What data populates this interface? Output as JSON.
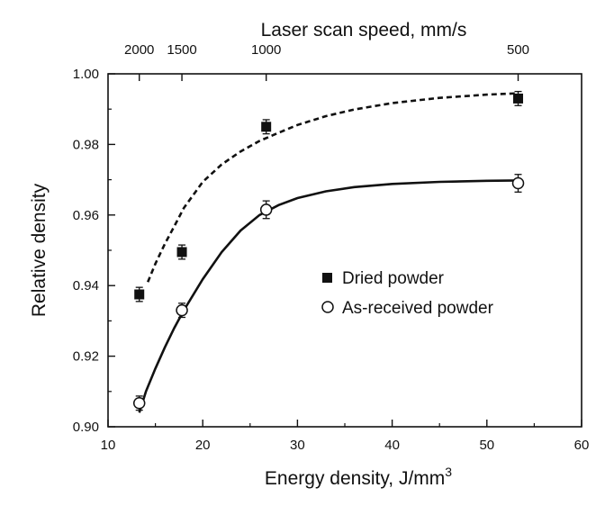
{
  "chart_data": {
    "type": "scatter",
    "xlabel": "Energy density, J/mm",
    "xlabel_superscript": "3",
    "ylabel": "Relative density",
    "top_axis_label": "Laser scan speed, mm/s",
    "xlim": [
      10,
      60
    ],
    "ylim": [
      0.9,
      1.0
    ],
    "x_ticks": [
      10,
      20,
      30,
      40,
      50,
      60
    ],
    "y_ticks": [
      "0.90",
      "0.92",
      "0.94",
      "0.96",
      "0.98",
      "1.00"
    ],
    "top_ticks": [
      {
        "label": "2000",
        "energy_density": 13.3
      },
      {
        "label": "1500",
        "energy_density": 17.8
      },
      {
        "label": "1000",
        "energy_density": 26.7
      },
      {
        "label": "500",
        "energy_density": 53.3
      }
    ],
    "grid": false,
    "legend_position": "center-right",
    "series": [
      {
        "name": "Dried powder",
        "marker": "filled-square",
        "fit_line": "dashed",
        "points": [
          {
            "x": 13.3,
            "y": 0.9375,
            "err": 0.002
          },
          {
            "x": 17.8,
            "y": 0.9495,
            "err": 0.002
          },
          {
            "x": 26.7,
            "y": 0.985,
            "err": 0.002
          },
          {
            "x": 53.3,
            "y": 0.993,
            "err": 0.002
          }
        ],
        "fit": [
          [
            14.2,
            0.941
          ],
          [
            15.0,
            0.9462
          ],
          [
            16.0,
            0.9518
          ],
          [
            17.0,
            0.9568
          ],
          [
            18.0,
            0.962
          ],
          [
            20.0,
            0.9694
          ],
          [
            22.0,
            0.9743
          ],
          [
            24.0,
            0.978
          ],
          [
            26.0,
            0.981
          ],
          [
            28.0,
            0.9833
          ],
          [
            30.0,
            0.9855
          ],
          [
            33.0,
            0.988
          ],
          [
            36.0,
            0.9899
          ],
          [
            40.0,
            0.9917
          ],
          [
            45.0,
            0.9932
          ],
          [
            50.0,
            0.9941
          ],
          [
            53.3,
            0.9945
          ]
        ]
      },
      {
        "name": "As-received powder",
        "marker": "open-circle",
        "fit_line": "solid",
        "points": [
          {
            "x": 13.3,
            "y": 0.9067,
            "err": 0.002
          },
          {
            "x": 17.8,
            "y": 0.933,
            "err": 0.002
          },
          {
            "x": 26.7,
            "y": 0.9615,
            "err": 0.0025
          },
          {
            "x": 53.3,
            "y": 0.969,
            "err": 0.0025
          }
        ],
        "fit": [
          [
            13.3,
            0.904
          ],
          [
            14.0,
            0.91
          ],
          [
            15.0,
            0.9165
          ],
          [
            16.0,
            0.9225
          ],
          [
            17.0,
            0.928
          ],
          [
            18.0,
            0.933
          ],
          [
            20.0,
            0.9418
          ],
          [
            22.0,
            0.9495
          ],
          [
            24.0,
            0.9556
          ],
          [
            26.0,
            0.96
          ],
          [
            28.0,
            0.9628
          ],
          [
            30.0,
            0.9648
          ],
          [
            33.0,
            0.9667
          ],
          [
            36.0,
            0.9679
          ],
          [
            40.0,
            0.9688
          ],
          [
            45.0,
            0.9694
          ],
          [
            50.0,
            0.9697
          ],
          [
            53.3,
            0.9698
          ]
        ]
      }
    ]
  }
}
